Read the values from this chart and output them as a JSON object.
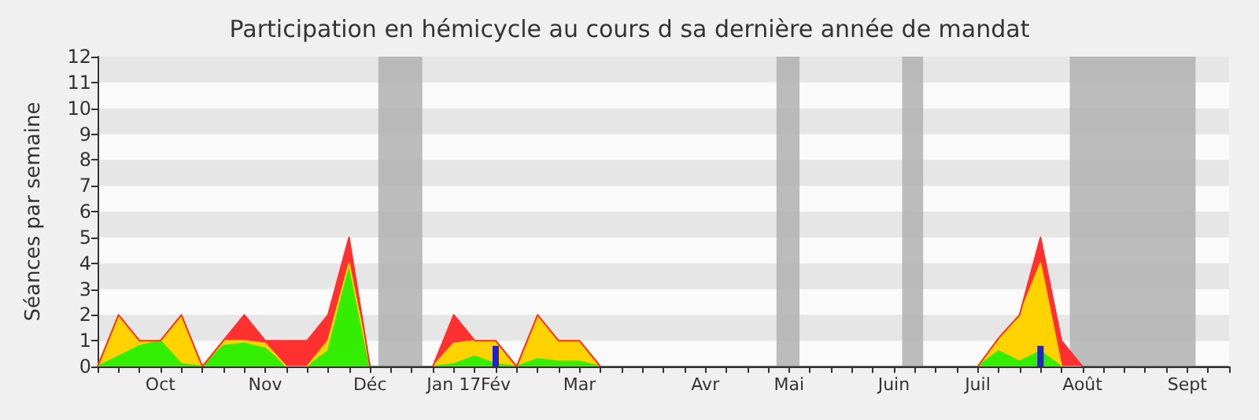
{
  "chart_data": {
    "type": "area",
    "title": "Participation en hémicycle au cours d sa dernière année de mandat",
    "ylabel": "Séances par semaine",
    "stacked": true,
    "categories": [
      null,
      null,
      null,
      "Oct",
      null,
      null,
      null,
      null,
      "Nov",
      null,
      null,
      null,
      null,
      "Déc",
      null,
      null,
      null,
      "Jan 17",
      null,
      "Fév",
      null,
      null,
      null,
      "Mar",
      null,
      null,
      null,
      null,
      null,
      "Avr",
      null,
      null,
      null,
      "Mai",
      null,
      null,
      null,
      null,
      "Juin",
      null,
      null,
      null,
      "Juil",
      null,
      null,
      null,
      null,
      "Août",
      null,
      null,
      null,
      null,
      "Sept",
      null,
      null
    ],
    "series": [
      {
        "color": "#33ee00",
        "values": [
          0,
          0.4,
          0.8,
          1.0,
          0.1,
          0,
          0.8,
          0.9,
          0.7,
          0,
          0,
          0.6,
          3.8,
          0,
          0,
          0,
          0,
          0.1,
          0.4,
          0.1,
          0,
          0.3,
          0.2,
          0.2,
          0,
          0,
          0,
          0,
          0,
          0,
          0,
          0,
          0,
          0,
          0,
          0,
          0,
          0,
          0,
          0,
          0,
          0,
          0,
          0.6,
          0.2,
          0.6,
          0,
          0,
          0,
          0,
          0,
          0,
          0,
          0,
          0
        ]
      },
      {
        "color": "#ffd200",
        "values": [
          0,
          1.6,
          0.2,
          0,
          1.9,
          0,
          0.2,
          0.1,
          0.2,
          0,
          0,
          0.4,
          0.2,
          0,
          0,
          0,
          0,
          0.8,
          0.6,
          0.9,
          0,
          1.7,
          0.8,
          0.8,
          0,
          0,
          0,
          0,
          0,
          0,
          0,
          0,
          0,
          0,
          0,
          0,
          0,
          0,
          0,
          0,
          0,
          0,
          0,
          0.5,
          1.8,
          3.4,
          0,
          0,
          0,
          0,
          0,
          0,
          0,
          0,
          0
        ]
      },
      {
        "color": "#ff3030",
        "values": [
          0,
          0,
          0,
          0,
          0,
          0,
          0,
          1.0,
          0.1,
          1.0,
          1.0,
          1.0,
          1.0,
          0,
          0,
          0,
          0,
          1.1,
          0,
          0,
          0,
          0,
          0,
          0,
          0,
          0,
          0,
          0,
          0,
          0,
          0,
          0,
          0,
          0,
          0,
          0,
          0,
          0,
          0,
          0,
          0,
          0,
          0,
          0,
          0,
          1.0,
          1.0,
          0,
          0,
          0,
          0,
          0,
          0,
          0,
          0
        ]
      },
      {
        "type": "bar",
        "color": "#2222cc",
        "values": [
          null,
          null,
          null,
          null,
          null,
          null,
          null,
          null,
          null,
          null,
          null,
          null,
          null,
          null,
          null,
          null,
          null,
          null,
          null,
          0.8,
          null,
          null,
          null,
          null,
          null,
          null,
          null,
          null,
          null,
          null,
          null,
          null,
          null,
          null,
          null,
          null,
          null,
          null,
          null,
          null,
          null,
          null,
          null,
          null,
          null,
          0.8,
          null,
          null,
          null,
          null,
          null,
          null,
          null,
          null,
          null
        ]
      }
    ],
    "ylim": [
      0,
      12
    ],
    "yticks": [
      0,
      1,
      2,
      3,
      4,
      5,
      6,
      7,
      8,
      9,
      10,
      11,
      12
    ],
    "grid": false
  }
}
